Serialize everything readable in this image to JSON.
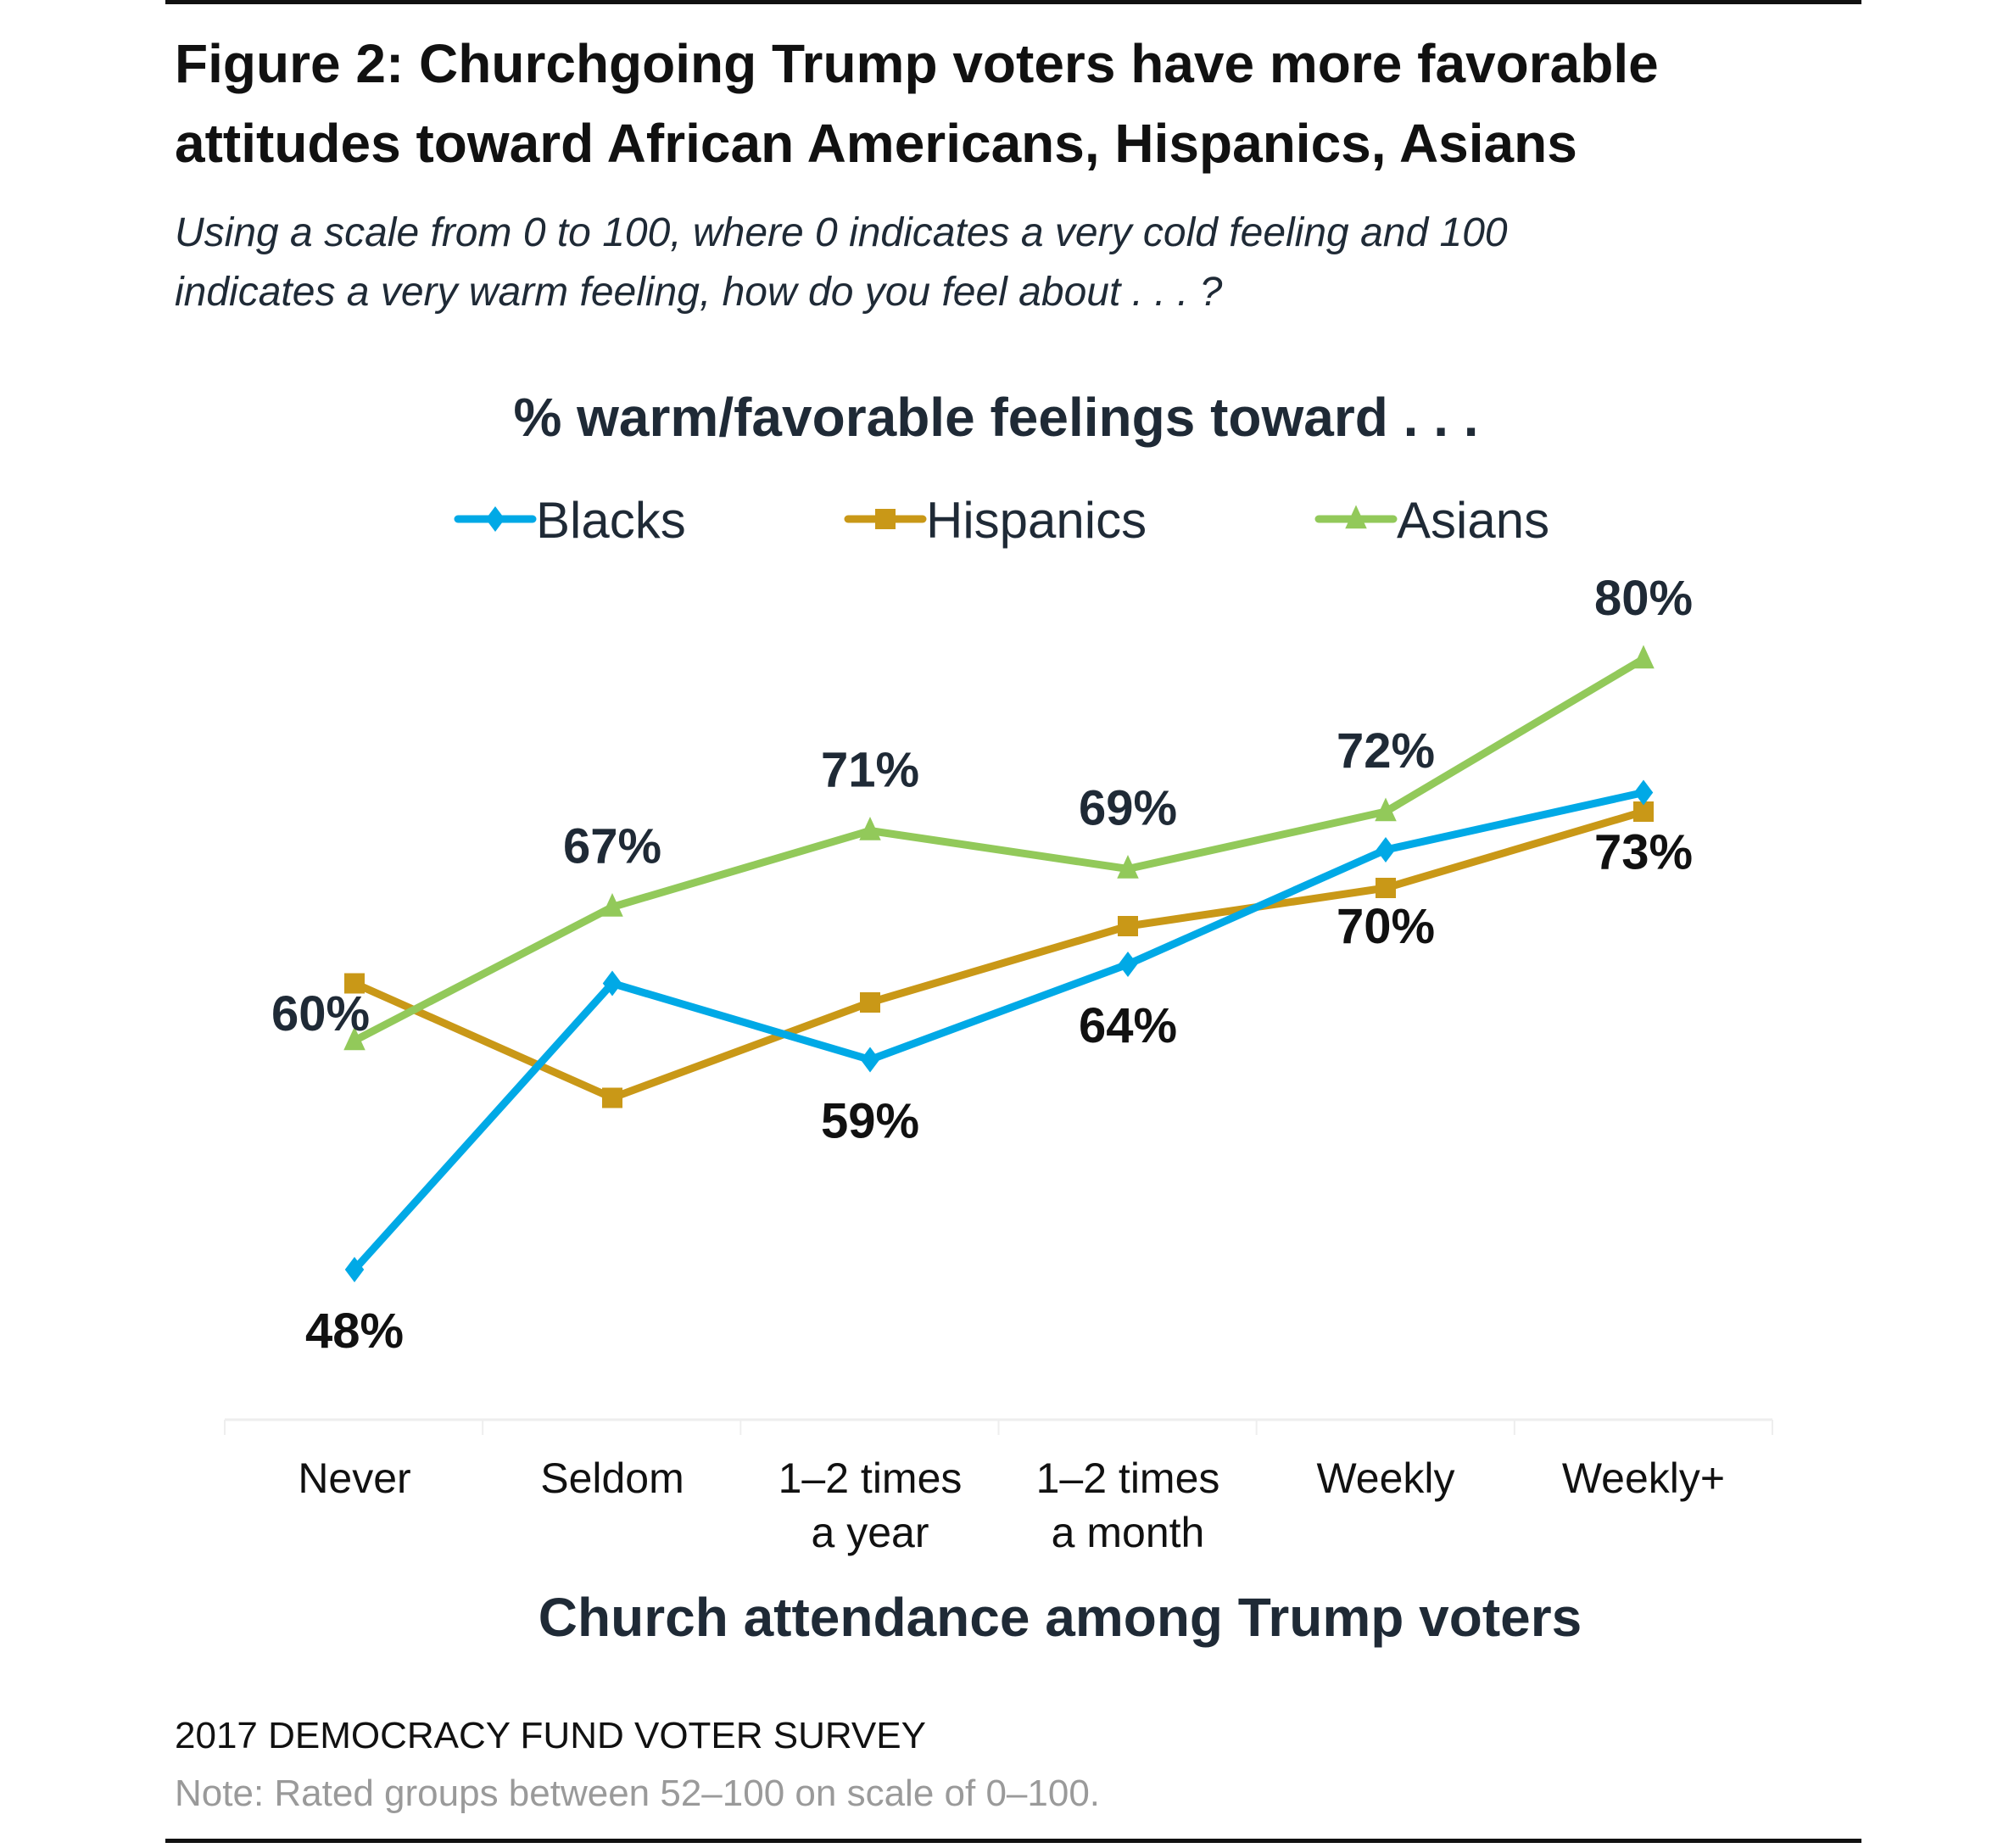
{
  "figure": {
    "title_line1": "Figure 2: Churchgoing Trump voters have more favorable",
    "title_line2": "attitudes toward African Americans, Hispanics, Asians",
    "subtitle_line1": "Using  a scale from 0 to 100, where 0 indicates a very cold  feeling and 100",
    "subtitle_line2": "indicates a very warm feeling, how do you feel about . . . ?",
    "source": "2017 DEMOCRACY FUND VOTER SURVEY",
    "note": "Note: Rated groups between 52–100 on scale of 0–100."
  },
  "chart_data": {
    "type": "line",
    "title": "% warm/favorable feelings toward . . .",
    "xlabel": "Church attendance among Trump voters",
    "ylabel": "",
    "categories": [
      "Never",
      "Seldom",
      "1–2 times\na year",
      "1–2 times\na month",
      "Weekly",
      "Weekly+"
    ],
    "ylim": [
      40,
      85
    ],
    "grid": false,
    "legend_position": "top-center",
    "series": [
      {
        "name": "Blacks",
        "color": "#00a9e6",
        "marker": "diamond",
        "values": [
          48,
          63,
          59,
          64,
          70,
          73
        ],
        "labels": [
          "48%",
          null,
          "59%",
          "64%",
          "70%",
          "73%"
        ],
        "label_side": [
          "below",
          null,
          "below",
          "below",
          "below",
          "below"
        ]
      },
      {
        "name": "Hispanics",
        "color": "#c99817",
        "marker": "square",
        "values": [
          63,
          57,
          62,
          66,
          68,
          72
        ],
        "labels": [
          null,
          null,
          null,
          null,
          null,
          null
        ],
        "label_side": [
          null,
          null,
          null,
          null,
          null,
          null
        ]
      },
      {
        "name": "Asians",
        "color": "#92c95a",
        "marker": "triangle",
        "values": [
          60,
          67,
          71,
          69,
          72,
          80
        ],
        "labels": [
          "60%",
          "67%",
          "71%",
          "69%",
          "72%",
          "80%"
        ],
        "label_side": [
          "left",
          "above",
          "above",
          "above",
          "above",
          "above"
        ]
      }
    ],
    "label_colors": {
      "Blacks": "#111111",
      "Asians": "#1f2a36"
    }
  }
}
